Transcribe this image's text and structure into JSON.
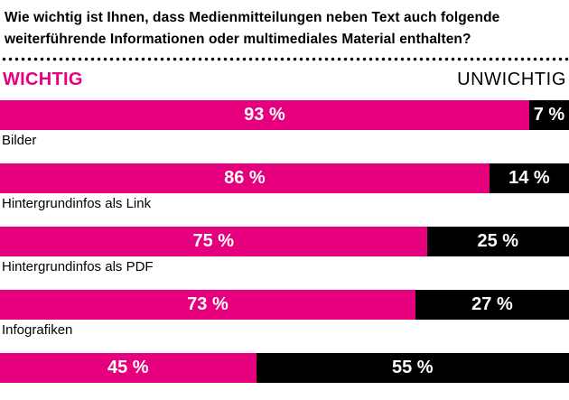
{
  "title_lines": [
    "Wie wichtig ist Ihnen, dass Medienmitteilungen neben Text auch folgende",
    "weiterführende Informationen oder multimediales Material enthalten?"
  ],
  "legend": {
    "wichtig": "WICHTIG",
    "unwichtig": "UNWICHTIG"
  },
  "colors": {
    "wichtig": "#e6007e",
    "unwichtig": "#000000",
    "text_on_bar": "#ffffff"
  },
  "chart_data": {
    "type": "bar",
    "orientation": "horizontal",
    "stacked": true,
    "title": "Wie wichtig ist Ihnen, dass Medienmitteilungen neben Text auch folgende weiterführende Informationen oder multimediales Material enthalten?",
    "categories": [
      "Bilder",
      "Hintergrundinfos als Link",
      "Hintergrundinfos als PDF",
      "Infografiken",
      ""
    ],
    "series": [
      {
        "name": "WICHTIG",
        "color": "#e6007e",
        "values": [
          93,
          86,
          75,
          73,
          45
        ]
      },
      {
        "name": "UNWICHTIG",
        "color": "#000000",
        "values": [
          7,
          14,
          25,
          27,
          55
        ]
      }
    ],
    "value_suffix": " %",
    "xlim": [
      0,
      100
    ],
    "legend_position": "top",
    "grid": false
  }
}
